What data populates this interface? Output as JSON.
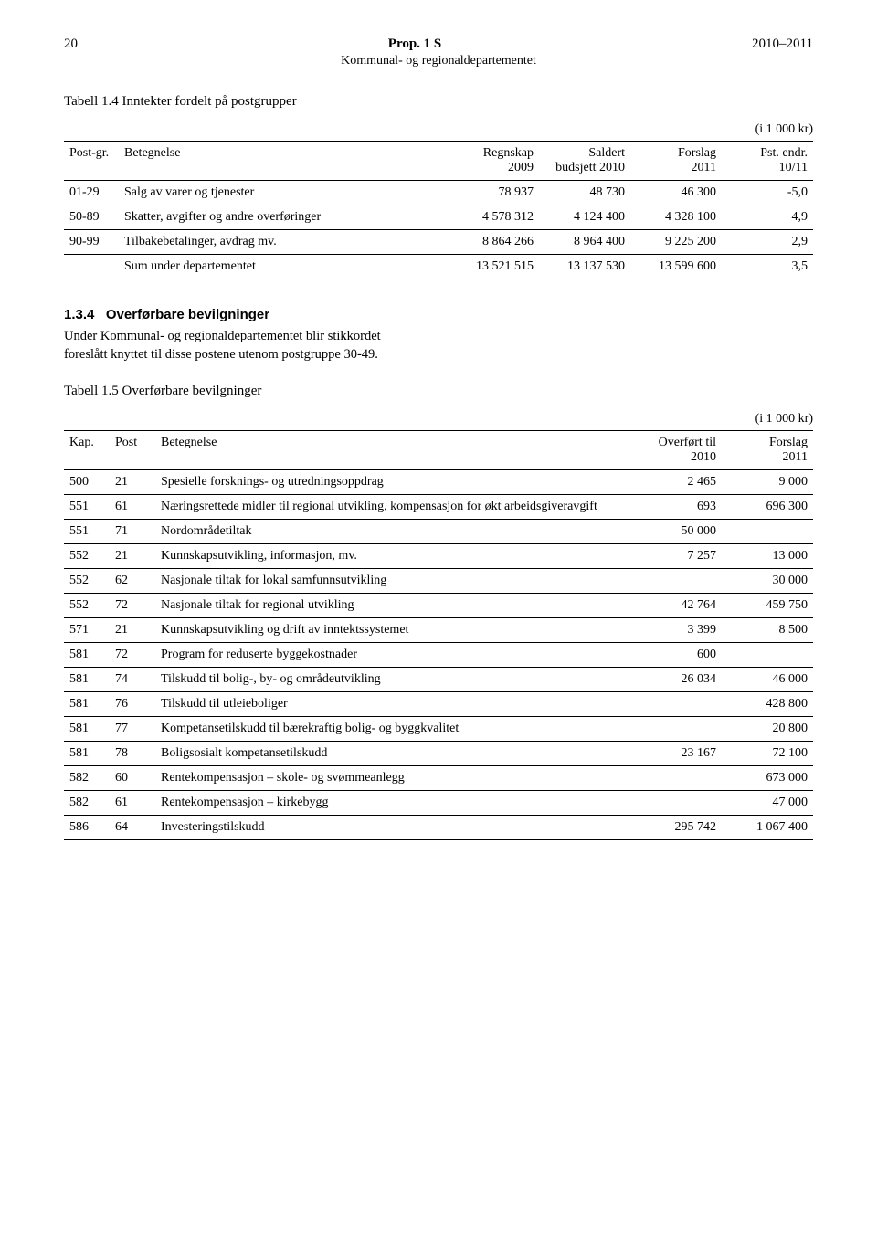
{
  "header": {
    "pageNumber": "20",
    "title": "Prop. 1 S",
    "year": "2010–2011",
    "subtitle": "Kommunal- og regionaldepartementet"
  },
  "table1": {
    "title": "Tabell 1.4 Inntekter fordelt på postgrupper",
    "unit": "(i 1 000 kr)",
    "headers": {
      "postgr": "Post-gr.",
      "betegnelse": "Betegnelse",
      "regnskap": "Regnskap\n2009",
      "saldert": "Saldert\nbudsjett 2010",
      "forslag": "Forslag\n2011",
      "pst": "Pst. endr.\n10/11"
    },
    "rows": [
      {
        "pg": "01-29",
        "bet": "Salg av varer og tjenester",
        "r1": "78 937",
        "r2": "48 730",
        "r3": "46 300",
        "r4": "-5,0"
      },
      {
        "pg": "50-89",
        "bet": "Skatter, avgifter og andre overføringer",
        "r1": "4 578 312",
        "r2": "4 124 400",
        "r3": "4 328 100",
        "r4": "4,9"
      },
      {
        "pg": "90-99",
        "bet": "Tilbakebetalinger, avdrag mv.",
        "r1": "8 864 266",
        "r2": "8 964 400",
        "r3": "9 225 200",
        "r4": "2,9"
      },
      {
        "pg": "",
        "bet": "Sum under departementet",
        "r1": "13 521 515",
        "r2": "13 137 530",
        "r3": "13 599 600",
        "r4": "3,5"
      }
    ]
  },
  "section": {
    "num": "1.3.4",
    "title": "Overførbare bevilgninger",
    "body": "Under Kommunal- og regionaldepartementet blir stikkordet foreslått knyttet til disse postene utenom postgruppe 30-49."
  },
  "table2": {
    "title": "Tabell 1.5 Overførbare bevilgninger",
    "unit": "(i 1 000 kr)",
    "headers": {
      "kap": "Kap.",
      "post": "Post",
      "betegnelse": "Betegnelse",
      "overfort": "Overført til\n2010",
      "forslag": "Forslag\n2011"
    },
    "rows": [
      {
        "k": "500",
        "p": "21",
        "b": "Spesielle forsknings- og utredningsoppdrag",
        "o": "2 465",
        "f": "9 000"
      },
      {
        "k": "551",
        "p": "61",
        "b": "Næringsrettede midler til regional utvikling, kompensasjon for økt arbeidsgiveravgift",
        "o": "693",
        "f": "696 300"
      },
      {
        "k": "551",
        "p": "71",
        "b": "Nordområdetiltak",
        "o": "50 000",
        "f": ""
      },
      {
        "k": "552",
        "p": "21",
        "b": "Kunnskapsutvikling, informasjon, mv.",
        "o": "7 257",
        "f": "13 000"
      },
      {
        "k": "552",
        "p": "62",
        "b": "Nasjonale tiltak for lokal samfunnsutvikling",
        "o": "",
        "f": "30 000"
      },
      {
        "k": "552",
        "p": "72",
        "b": "Nasjonale tiltak for regional utvikling",
        "o": "42 764",
        "f": "459 750"
      },
      {
        "k": "571",
        "p": "21",
        "b": "Kunnskapsutvikling og drift av inntektssystemet",
        "o": "3 399",
        "f": "8 500"
      },
      {
        "k": "581",
        "p": "72",
        "b": "Program for reduserte byggekostnader",
        "o": "600",
        "f": ""
      },
      {
        "k": "581",
        "p": "74",
        "b": "Tilskudd til bolig-, by- og områdeutvikling",
        "o": "26 034",
        "f": "46 000"
      },
      {
        "k": "581",
        "p": "76",
        "b": "Tilskudd til utleieboliger",
        "o": "",
        "f": "428 800"
      },
      {
        "k": "581",
        "p": "77",
        "b": "Kompetansetilskudd til bærekraftig bolig- og byggkvalitet",
        "o": "",
        "f": "20 800"
      },
      {
        "k": "581",
        "p": "78",
        "b": "Boligsosialt kompetansetilskudd",
        "o": "23 167",
        "f": "72 100"
      },
      {
        "k": "582",
        "p": "60",
        "b": "Rentekompensasjon – skole- og svømmeanlegg",
        "o": "",
        "f": "673 000"
      },
      {
        "k": "582",
        "p": "61",
        "b": "Rentekompensasjon – kirkebygg",
        "o": "",
        "f": "47 000"
      },
      {
        "k": "586",
        "p": "64",
        "b": "Investeringstilskudd",
        "o": "295 742",
        "f": "1 067 400"
      }
    ]
  }
}
